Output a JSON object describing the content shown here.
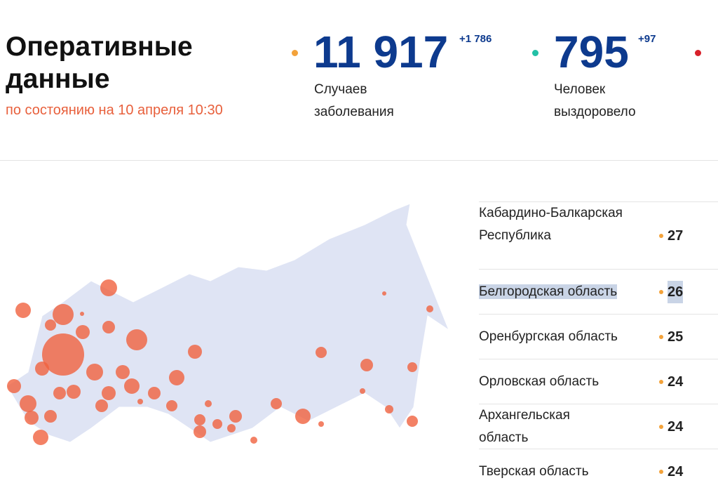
{
  "header": {
    "title": "Оперативные данные",
    "subtitle": "по состоянию на 10 апреля 10:30"
  },
  "stats": [
    {
      "value": "11 917",
      "delta": "+1 786",
      "label": "Случаев заболевания"
    },
    {
      "value": "795",
      "delta": "+97",
      "label": "Человек выздоровело"
    }
  ],
  "table": {
    "rows": [
      [
        "Кабардино-Балкарская Республика",
        "27"
      ],
      [
        "Белгородская область",
        "26"
      ],
      [
        "Оренбургская область",
        "25"
      ],
      [
        "Орловская область",
        "24"
      ],
      [
        "Архангельская область",
        "24"
      ],
      [
        "Тверская область",
        "24"
      ]
    ]
  }
}
